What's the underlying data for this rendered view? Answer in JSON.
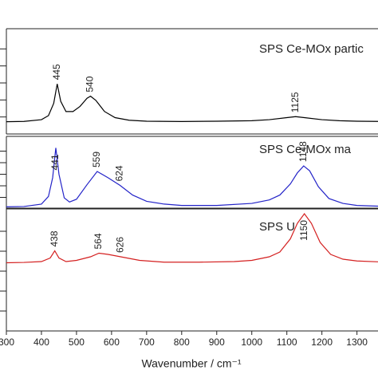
{
  "chart_data": [
    {
      "type": "line",
      "title": "SPS Ce-MOx partic",
      "color": "#000000",
      "xlim": [
        300,
        1360
      ],
      "ylim": [
        0,
        100
      ],
      "peaks": [
        445,
        540,
        1125
      ],
      "x": [
        300,
        350,
        400,
        420,
        435,
        445,
        455,
        470,
        490,
        510,
        530,
        540,
        555,
        580,
        610,
        650,
        700,
        800,
        900,
        1000,
        1050,
        1100,
        1125,
        1150,
        1200,
        1250,
        1300,
        1360
      ],
      "values": [
        12,
        12.3,
        14,
        18,
        30,
        49,
        32,
        22,
        22,
        27,
        35,
        37,
        33,
        22,
        16,
        13.5,
        12.5,
        12.2,
        12.5,
        13,
        14,
        16,
        17,
        16,
        14,
        13,
        12.5,
        12.3
      ]
    },
    {
      "type": "line",
      "title": "SPS Ce-MOx ma",
      "color": "#2323c8",
      "xlim": [
        300,
        1360
      ],
      "ylim": [
        0,
        100
      ],
      "peaks": [
        441,
        559,
        624,
        1148
      ],
      "x": [
        300,
        350,
        400,
        420,
        432,
        441,
        450,
        465,
        480,
        500,
        530,
        559,
        590,
        624,
        660,
        700,
        750,
        800,
        900,
        1000,
        1050,
        1080,
        1110,
        1130,
        1148,
        1165,
        1190,
        1220,
        1260,
        1300,
        1360
      ],
      "values": [
        3,
        3.5,
        7,
        18,
        45,
        88,
        50,
        16,
        10,
        14,
        35,
        54,
        45,
        34,
        20,
        11,
        7,
        5,
        5,
        8,
        13,
        20,
        36,
        52,
        62,
        55,
        32,
        15,
        8,
        5,
        4
      ]
    },
    {
      "type": "line",
      "title": "SPS U",
      "color": "#d42020",
      "xlim": [
        300,
        1360
      ],
      "ylim": [
        0,
        100
      ],
      "peaks": [
        438,
        564,
        626,
        1150
      ],
      "x": [
        300,
        350,
        400,
        425,
        438,
        450,
        470,
        500,
        540,
        564,
        590,
        626,
        680,
        750,
        850,
        950,
        1000,
        1050,
        1080,
        1110,
        1130,
        1150,
        1170,
        1195,
        1225,
        1260,
        1300,
        1360
      ],
      "values": [
        57,
        57.3,
        58,
        61,
        67,
        61,
        58,
        59,
        62,
        65,
        64,
        62,
        59,
        57.5,
        57.5,
        58,
        59,
        62,
        66,
        77,
        90,
        98,
        90,
        74,
        64,
        60,
        58.5,
        57.8
      ],
      "xlabel": "Wavenumber / cm⁻¹",
      "xticks": [
        300,
        400,
        500,
        600,
        700,
        800,
        900,
        1000,
        1100,
        1200,
        1300
      ]
    }
  ]
}
